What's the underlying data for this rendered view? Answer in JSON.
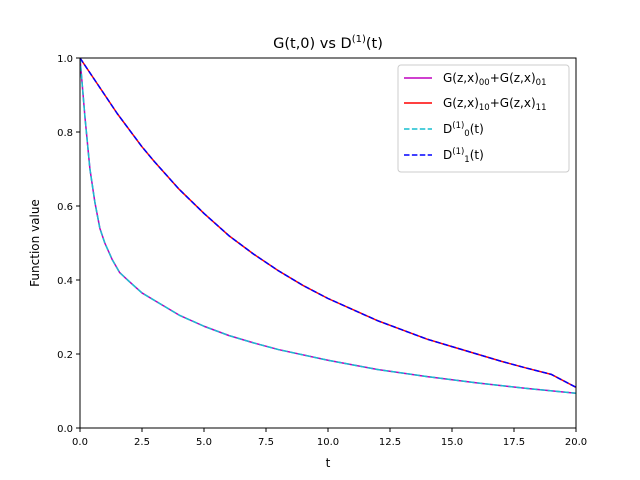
{
  "chart_data": {
    "type": "line",
    "title": "G(t,0) vs D(1)(t)",
    "title_parts": {
      "base": "G(t,0) vs D",
      "sup": "(1)",
      "tail": "(t)"
    },
    "xlabel": "t",
    "ylabel": "Function value",
    "xlim": [
      0,
      20
    ],
    "ylim": [
      0,
      1
    ],
    "xticks": [
      0,
      2.5,
      5,
      7.5,
      10,
      12.5,
      15,
      17.5,
      20
    ],
    "xtick_labels": [
      "0.0",
      "2.5",
      "5.0",
      "7.5",
      "10.0",
      "12.5",
      "15.0",
      "17.5",
      "20.0"
    ],
    "yticks": [
      0,
      0.2,
      0.4,
      0.6,
      0.8,
      1.0
    ],
    "ytick_labels": [
      "0.0",
      "0.2",
      "0.4",
      "0.6",
      "0.8",
      "1.0"
    ],
    "grid": false,
    "legend_position": "top-right",
    "series": [
      {
        "name": "G(z,x)00+G(z,x)01",
        "label_parts": [
          {
            "t": "G(z,x)"
          },
          {
            "t": "00",
            "sub": true
          },
          {
            "t": "+G(z,x)"
          },
          {
            "t": "01",
            "sub": true
          }
        ],
        "color": "#bf00bf",
        "style": "solid",
        "x": [
          0,
          0.2,
          0.4,
          0.6,
          0.8,
          1.0,
          1.3,
          1.6,
          2,
          2.5,
          3,
          4,
          5,
          6,
          7,
          8,
          10,
          12,
          14,
          16,
          18,
          20
        ],
        "y": [
          1.0,
          0.84,
          0.7,
          0.61,
          0.54,
          0.5,
          0.455,
          0.42,
          0.395,
          0.365,
          0.345,
          0.305,
          0.275,
          0.25,
          0.23,
          0.212,
          0.183,
          0.158,
          0.139,
          0.122,
          0.107,
          0.094
        ]
      },
      {
        "name": "G(z,x)10+G(z,x)11",
        "label_parts": [
          {
            "t": "G(z,x)"
          },
          {
            "t": "10",
            "sub": true
          },
          {
            "t": "+G(z,x)"
          },
          {
            "t": "11",
            "sub": true
          }
        ],
        "color": "#ff0000",
        "style": "solid",
        "x": [
          0,
          0.5,
          1,
          1.5,
          2,
          2.5,
          3,
          4,
          5,
          6,
          7,
          8,
          9,
          10,
          11,
          12,
          13,
          14,
          15,
          16,
          17,
          18,
          19,
          20
        ],
        "y": [
          1.0,
          0.95,
          0.9,
          0.85,
          0.805,
          0.76,
          0.72,
          0.645,
          0.58,
          0.52,
          0.47,
          0.425,
          0.385,
          0.35,
          0.32,
          0.29,
          0.265,
          0.24,
          0.22,
          0.2,
          0.18,
          0.162,
          0.145,
          0.11
        ]
      },
      {
        "name": "D(1)0(t)",
        "label_parts": [
          {
            "t": "D"
          },
          {
            "t": "(1)",
            "sup": true
          },
          {
            "t": "0",
            "sub": true
          },
          {
            "t": "(t)"
          }
        ],
        "color": "#17becf",
        "style": "dashed",
        "x": [
          0,
          0.2,
          0.4,
          0.6,
          0.8,
          1.0,
          1.3,
          1.6,
          2,
          2.5,
          3,
          4,
          5,
          6,
          7,
          8,
          10,
          12,
          14,
          16,
          18,
          20
        ],
        "y": [
          1.0,
          0.84,
          0.7,
          0.61,
          0.54,
          0.5,
          0.455,
          0.42,
          0.395,
          0.365,
          0.345,
          0.305,
          0.275,
          0.25,
          0.23,
          0.212,
          0.183,
          0.158,
          0.139,
          0.122,
          0.107,
          0.094
        ]
      },
      {
        "name": "D(1)1(t)",
        "label_parts": [
          {
            "t": "D"
          },
          {
            "t": "(1)",
            "sup": true
          },
          {
            "t": "1",
            "sub": true
          },
          {
            "t": "(t)"
          }
        ],
        "color": "#0000ff",
        "style": "dashed",
        "x": [
          0,
          0.5,
          1,
          1.5,
          2,
          2.5,
          3,
          4,
          5,
          6,
          7,
          8,
          9,
          10,
          11,
          12,
          13,
          14,
          15,
          16,
          17,
          18,
          19,
          20
        ],
        "y": [
          1.0,
          0.95,
          0.9,
          0.85,
          0.805,
          0.76,
          0.72,
          0.645,
          0.58,
          0.52,
          0.47,
          0.425,
          0.385,
          0.35,
          0.32,
          0.29,
          0.265,
          0.24,
          0.22,
          0.2,
          0.18,
          0.162,
          0.145,
          0.11
        ]
      }
    ]
  }
}
